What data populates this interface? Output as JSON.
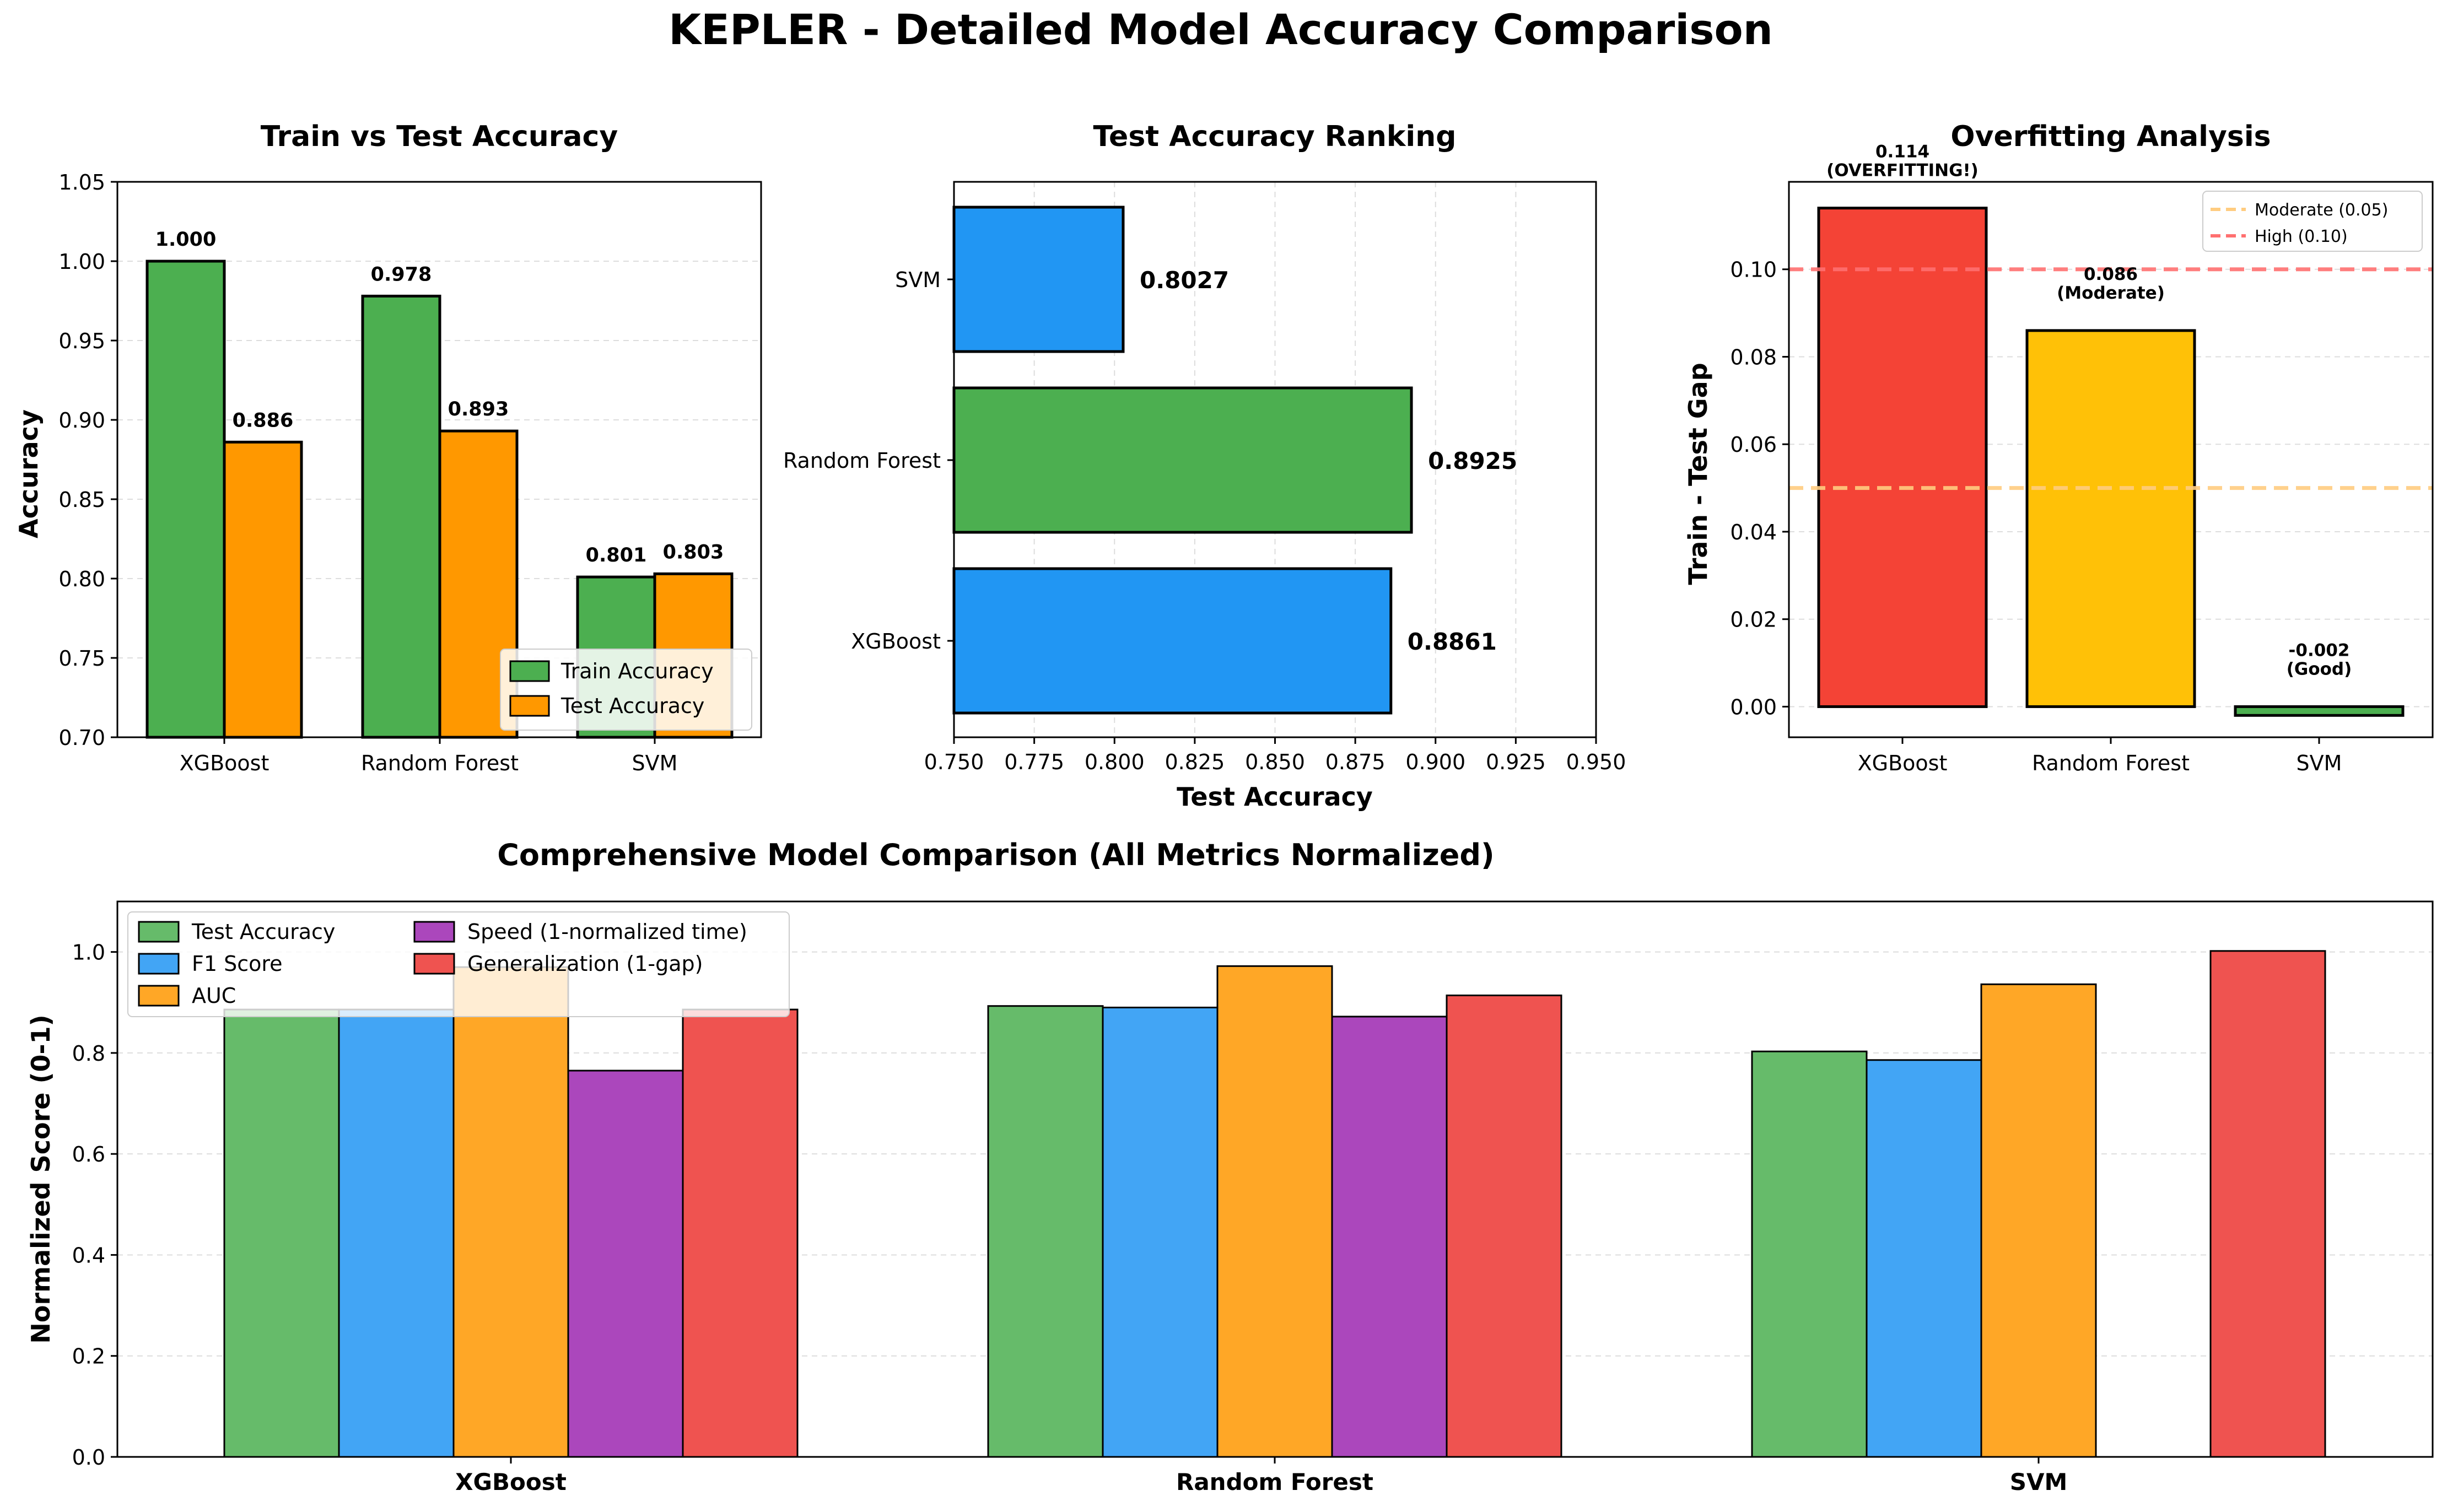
{
  "figure_title": "KEPLER - Detailed Model Accuracy Comparison",
  "colors": {
    "train": "#4caf50",
    "test": "#ff9800",
    "rank_blue": "#2196f3",
    "rank_green": "#4caf50",
    "over_red": "#f44336",
    "over_yellow": "#ffc107",
    "over_green": "#4caf50",
    "moderate_line": "#ffcc80",
    "high_line": "#ff7070",
    "m_test": "#66bb6a",
    "m_f1": "#42a5f5",
    "m_auc": "#ffa726",
    "m_speed": "#ab47bc",
    "m_gen": "#ef5350"
  },
  "chart_data": [
    {
      "type": "bar",
      "title": "Train vs Test Accuracy",
      "ylabel": "Accuracy",
      "xlabel": "",
      "categories": [
        "XGBoost",
        "Random Forest",
        "SVM"
      ],
      "ylim": [
        0.7,
        1.05
      ],
      "yticks": [
        "0.70",
        "0.75",
        "0.80",
        "0.85",
        "0.90",
        "0.95",
        "1.00",
        "1.05"
      ],
      "grid": "y dashed",
      "legend": "lower right",
      "series": [
        {
          "name": "Train Accuracy",
          "values": [
            1.0,
            0.978,
            0.801
          ],
          "labels": [
            "1.000",
            "0.978",
            "0.801"
          ]
        },
        {
          "name": "Test Accuracy",
          "values": [
            0.886,
            0.893,
            0.803
          ],
          "labels": [
            "0.886",
            "0.893",
            "0.803"
          ]
        }
      ]
    },
    {
      "type": "bar",
      "orientation": "horizontal",
      "title": "Test Accuracy Ranking",
      "xlabel": "Test Accuracy",
      "ylabel": "",
      "categories": [
        "XGBoost",
        "Random Forest",
        "SVM"
      ],
      "values": [
        0.8861,
        0.8925,
        0.8027
      ],
      "labels": [
        "0.8861",
        "0.8925",
        "0.8027"
      ],
      "xlim": [
        0.75,
        0.95
      ],
      "xticks": [
        "0.750",
        "0.775",
        "0.800",
        "0.825",
        "0.850",
        "0.875",
        "0.900",
        "0.925",
        "0.950"
      ],
      "grid": "x dashed"
    },
    {
      "type": "bar",
      "title": "Overfitting Analysis",
      "ylabel": "Train - Test Gap",
      "xlabel": "",
      "categories": [
        "XGBoost",
        "Random Forest",
        "SVM"
      ],
      "values": [
        0.114,
        0.086,
        -0.002
      ],
      "labels": [
        "0.114",
        "0.086",
        "-0.002"
      ],
      "status": [
        "(OVERFITTING!)",
        "(Moderate)",
        "(Good)"
      ],
      "ylim": [
        -0.007,
        0.12
      ],
      "yticks": [
        "0.00",
        "0.02",
        "0.04",
        "0.06",
        "0.08",
        "0.10"
      ],
      "thresholds": [
        {
          "name": "Moderate (0.05)",
          "value": 0.05
        },
        {
          "name": "High (0.10)",
          "value": 0.1
        }
      ],
      "legend": "top-right",
      "grid": "y dashed"
    },
    {
      "type": "bar",
      "title": "Comprehensive Model Comparison (All Metrics Normalized)",
      "ylabel": "Normalized Score (0-1)",
      "xlabel": "",
      "categories": [
        "XGBoost",
        "Random Forest",
        "SVM"
      ],
      "ylim": [
        0,
        1.1
      ],
      "yticks": [
        "0.0",
        "0.2",
        "0.4",
        "0.6",
        "0.8",
        "1.0"
      ],
      "grid": "y dashed",
      "legend": "upper left, 2 columns",
      "series": [
        {
          "name": "Test Accuracy",
          "values": [
            0.886,
            0.893,
            0.803
          ]
        },
        {
          "name": "F1 Score",
          "values": [
            0.886,
            0.89,
            0.786
          ]
        },
        {
          "name": "AUC",
          "values": [
            0.97,
            0.972,
            0.936
          ]
        },
        {
          "name": "Speed (1-normalized time)",
          "values": [
            0.765,
            0.872,
            0.0
          ]
        },
        {
          "name": "Generalization (1-gap)",
          "values": [
            0.886,
            0.914,
            1.002
          ]
        }
      ]
    }
  ]
}
